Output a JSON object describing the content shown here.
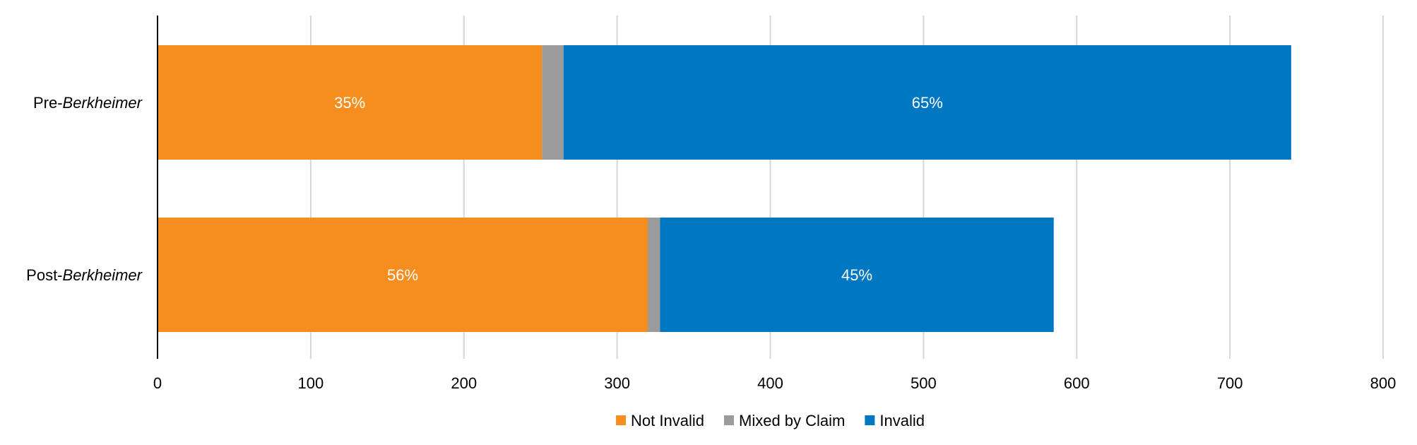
{
  "chart_data": {
    "type": "bar",
    "orientation": "horizontal",
    "stacked": true,
    "categories": [
      {
        "prefix": "Pre-",
        "emphasis": "Berkheimer"
      },
      {
        "prefix": "Post-",
        "emphasis": "Berkheimer"
      }
    ],
    "series": [
      {
        "name": "Not Invalid",
        "color": "#f58d1f",
        "values": [
          251,
          320
        ],
        "labels": [
          "35%",
          "56%"
        ]
      },
      {
        "name": "Mixed by Claim",
        "color": "#9b9b9b",
        "values": [
          14,
          8
        ],
        "labels": [
          "",
          ""
        ]
      },
      {
        "name": "Invalid",
        "color": "#0077c1",
        "values": [
          475,
          257
        ],
        "labels": [
          "65%",
          "45%"
        ]
      }
    ],
    "xlim": [
      0,
      800
    ],
    "xticks": [
      0,
      100,
      200,
      300,
      400,
      500,
      600,
      700,
      800
    ],
    "grid": true,
    "legend": "bottom-center",
    "title": "",
    "xlabel": "",
    "ylabel": ""
  }
}
